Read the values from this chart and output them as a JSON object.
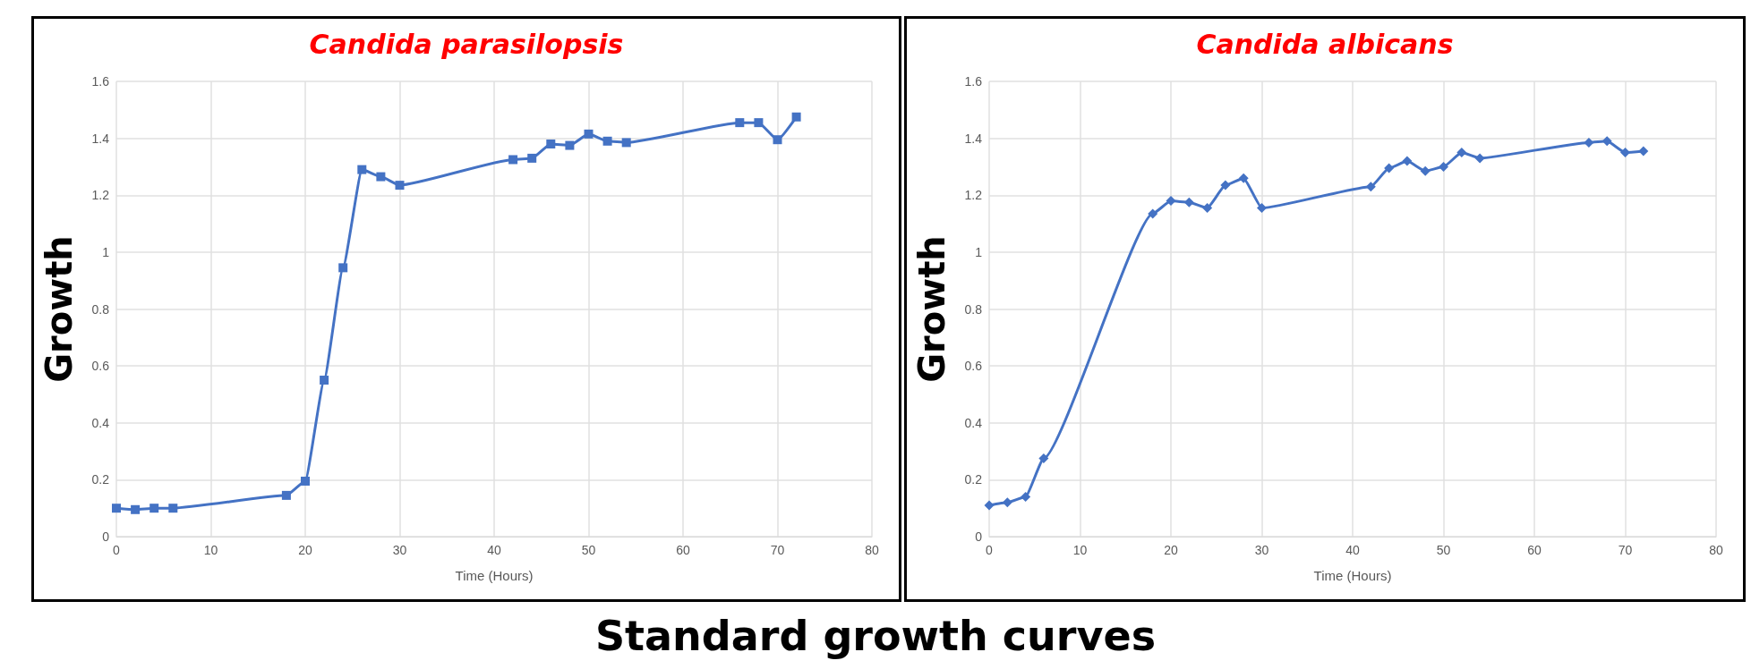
{
  "chart_data": [
    {
      "type": "line",
      "title": "Candida parasilopsis",
      "xlabel": "Time (Hours)",
      "ylabel": "Growth",
      "marker": "square",
      "grid": true,
      "annotations": [
        "Standard growth curves"
      ],
      "xlim": [
        0,
        80
      ],
      "xticks": [
        0,
        10,
        20,
        30,
        40,
        50,
        60,
        70,
        80
      ],
      "ylim": [
        0,
        1.6
      ],
      "yticks": [
        0,
        0.2,
        0.4,
        0.6,
        0.8,
        1,
        1.2,
        1.4,
        1.6
      ],
      "series": [
        {
          "color": "#4472c4",
          "x": [
            0,
            2,
            4,
            6,
            18,
            20,
            22,
            24,
            26,
            28,
            30,
            42,
            44,
            46,
            48,
            50,
            52,
            54,
            66,
            68,
            70,
            72
          ],
          "values": [
            0.1,
            0.095,
            0.1,
            0.1,
            0.145,
            0.195,
            0.55,
            0.945,
            1.29,
            1.265,
            1.235,
            1.325,
            1.33,
            1.38,
            1.375,
            1.415,
            1.39,
            1.385,
            1.455,
            1.455,
            1.395,
            1.475
          ]
        }
      ]
    },
    {
      "type": "line",
      "title": "Candida albicans",
      "xlabel": "Time (Hours)",
      "ylabel": "Growth",
      "marker": "diamond",
      "grid": true,
      "xlim": [
        0,
        80
      ],
      "xticks": [
        0,
        10,
        20,
        30,
        40,
        50,
        60,
        70,
        80
      ],
      "ylim": [
        0,
        1.6
      ],
      "yticks": [
        0,
        0.2,
        0.4,
        0.6,
        0.8,
        1,
        1.2,
        1.4,
        1.6
      ],
      "series": [
        {
          "color": "#4472c4",
          "x": [
            0,
            2,
            4,
            6,
            18,
            20,
            22,
            24,
            26,
            28,
            30,
            42,
            44,
            46,
            48,
            50,
            52,
            54,
            66,
            68,
            70,
            72
          ],
          "values": [
            0.11,
            0.12,
            0.14,
            0.275,
            1.135,
            1.18,
            1.175,
            1.155,
            1.235,
            1.26,
            1.155,
            1.23,
            1.295,
            1.32,
            1.285,
            1.3,
            1.35,
            1.33,
            1.385,
            1.39,
            1.35,
            1.355
          ]
        }
      ]
    }
  ]
}
